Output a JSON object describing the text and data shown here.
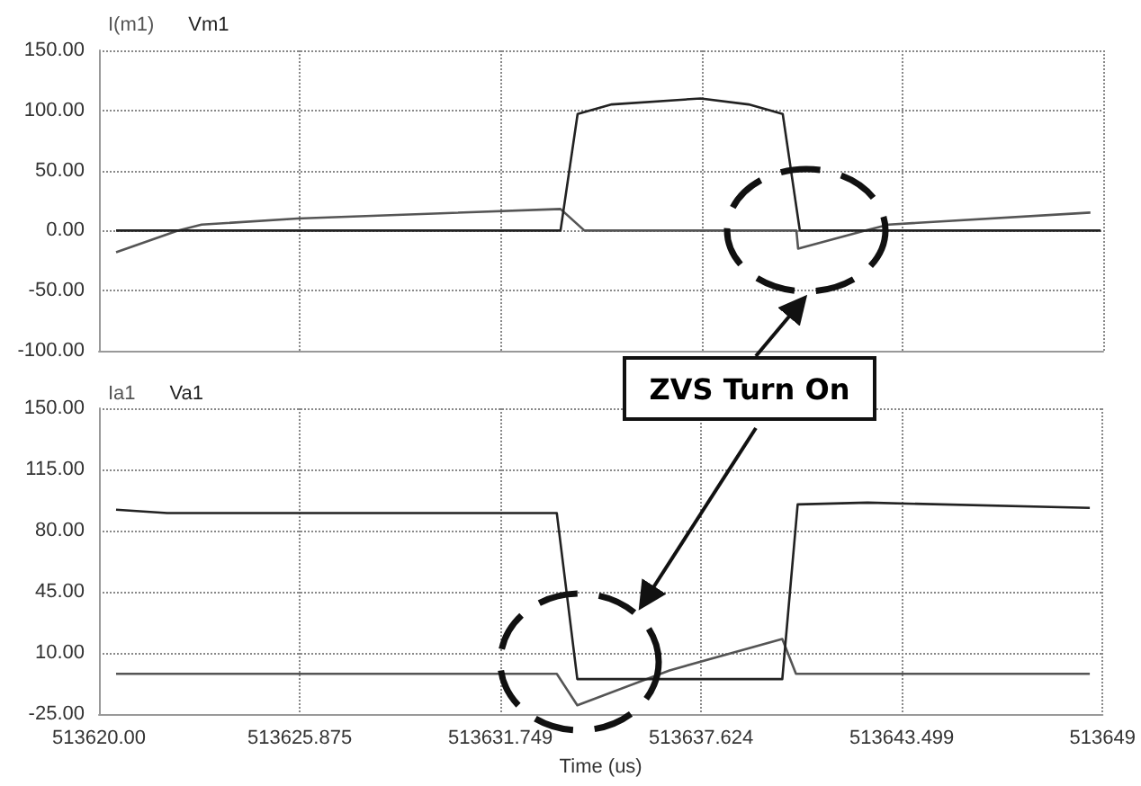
{
  "chart_data": [
    {
      "type": "line",
      "xlim": [
        513620,
        513649.374
      ],
      "xticks": [
        513620,
        513625.875,
        513631.749,
        513637.624,
        513643.499,
        513649.374
      ],
      "ylim": [
        -100,
        150
      ],
      "yticks": [
        {
          "value": -100,
          "label": "-100.00"
        },
        {
          "value": -50,
          "label": "-50.00"
        },
        {
          "value": 0,
          "label": "0.00"
        },
        {
          "value": 50,
          "label": "50.00"
        },
        {
          "value": 100,
          "label": "100.00"
        },
        {
          "value": 150,
          "label": "150.00"
        }
      ],
      "grid": true,
      "legend": "top left",
      "tick_labels": "y",
      "series": [
        {
          "name": "I(m1)",
          "color": "#555555",
          "x": [
            513620.5,
            513622.3,
            513623,
            513625.8,
            513633.5,
            513634.2,
            513640.4,
            513640.45,
            513642.4,
            513643.1,
            513649
          ],
          "values": [
            -18,
            0,
            5,
            10,
            18,
            0,
            0,
            -15,
            0,
            5,
            15
          ]
        },
        {
          "name": "Vm1",
          "color": "#222222",
          "x": [
            513620.5,
            513633.5,
            513634,
            513635,
            513637.6,
            513639,
            513640,
            513640.5,
            513649.3
          ],
          "values": [
            0,
            0,
            97,
            105,
            110,
            105,
            97,
            0,
            0
          ]
        }
      ]
    },
    {
      "type": "line",
      "xlim": [
        513620,
        513649.374
      ],
      "xticks": [
        {
          "value": 513620,
          "label": "513620.00"
        },
        513625.875,
        513631.749,
        513637.624,
        513643.499,
        {
          "value": 513649.374,
          "label": "513649"
        }
      ],
      "ylim": [
        -25,
        150
      ],
      "yticks": [
        {
          "value": -25,
          "label": "-25.00"
        },
        {
          "value": 10,
          "label": "10.00"
        },
        {
          "value": 45,
          "label": "45.00"
        },
        {
          "value": 80,
          "label": "80.00"
        },
        {
          "value": 115,
          "label": "115.00"
        },
        {
          "value": 150,
          "label": "150.00"
        }
      ],
      "xlabel": "Time (us)",
      "grid": true,
      "legend": "top left",
      "annotations": [
        "ZVS Turn On"
      ],
      "series": [
        {
          "name": "Ia1",
          "color": "#555555",
          "x": [
            513620.5,
            513633.4,
            513634,
            513636.7,
            513640,
            513640.4,
            513649
          ],
          "values": [
            -2,
            -2,
            -20,
            0,
            18,
            -2,
            -2
          ]
        },
        {
          "name": "Va1",
          "color": "#222222",
          "x": [
            513620.5,
            513622,
            513633.4,
            513634,
            513640,
            513640.45,
            513642.5,
            513649
          ],
          "values": [
            92,
            90,
            90,
            -5,
            -5,
            95,
            96,
            93
          ]
        }
      ]
    }
  ]
}
